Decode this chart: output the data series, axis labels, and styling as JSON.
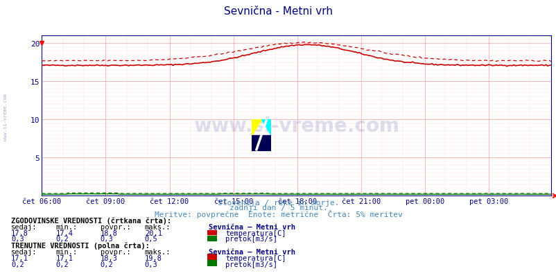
{
  "title": "Sevnična - Metni vrh",
  "subtitle1": "Slovenija / reke in morje.",
  "subtitle2": "zadnji dan / 5 minut.",
  "subtitle3": "Meritve: povprečne  Enote: metrične  Črta: 5% meritev",
  "watermark": "www.si-vreme.com",
  "x_tick_labels": [
    "čet 06:00",
    "čet 09:00",
    "čet 12:00",
    "čet 15:00",
    "čet 18:00",
    "čet 21:00",
    "pet 00:00",
    "pet 03:00"
  ],
  "x_tick_positions": [
    0,
    36,
    72,
    108,
    144,
    180,
    216,
    252
  ],
  "y_ticks": [
    0,
    5,
    10,
    15,
    20
  ],
  "ylim": [
    0,
    21
  ],
  "xlim": [
    0,
    287
  ],
  "bg_color": "#ffffff",
  "plot_bg_color": "#ffffff",
  "grid_color_major": "#ffaaaa",
  "grid_color_minor": "#ffdddd",
  "temp_solid_color": "#cc0000",
  "temp_dashed_color": "#cc0000",
  "flow_solid_color": "#007700",
  "flow_dashed_color": "#007700",
  "axis_label_color": "#000080",
  "title_color": "#000080",
  "subtitle_color": "#4488bb",
  "n_points": 288,
  "temp_hist_min": 17.4,
  "temp_hist_avg": 18.8,
  "temp_hist_max": 20.1,
  "temp_hist_current": 17.8,
  "flow_hist_min": 0.2,
  "flow_hist_avg": 0.3,
  "flow_hist_max": 0.5,
  "flow_hist_current": 0.3,
  "temp_curr_min": 17.1,
  "temp_curr_avg": 18.3,
  "temp_curr_max": 19.8,
  "temp_curr_current": 17.1,
  "flow_curr_min": 0.2,
  "flow_curr_avg": 0.2,
  "flow_curr_max": 0.3,
  "flow_curr_current": 0.2,
  "panel_bg_color": "#eef4fa"
}
